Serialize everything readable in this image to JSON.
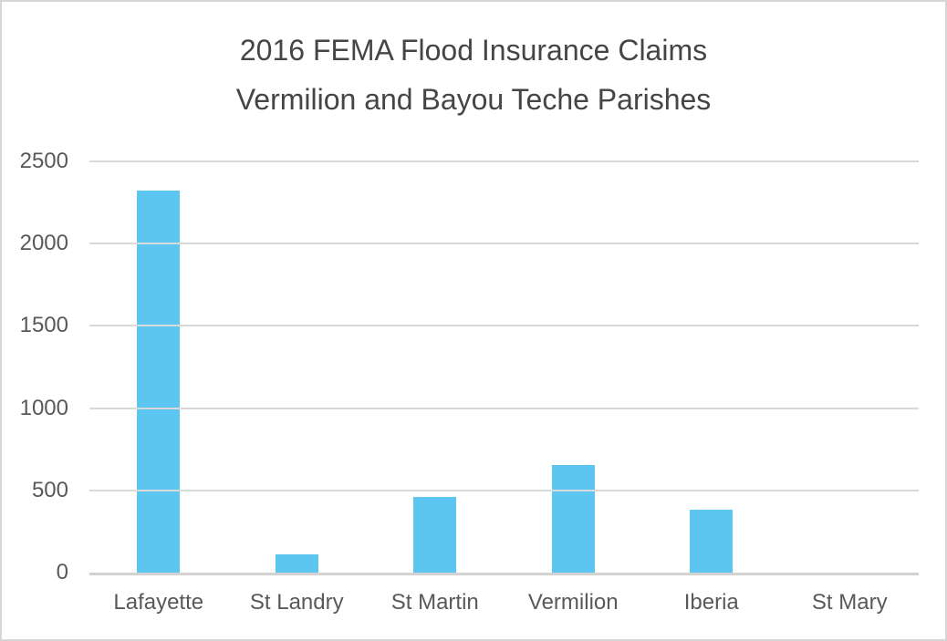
{
  "chart_data": {
    "type": "bar",
    "title": "2016 FEMA Flood Insurance Claims Vermilion and Bayou Teche Parishes",
    "title_line1": "2016 FEMA Flood Insurance Claims",
    "title_line2": "Vermilion and Bayou Teche Parishes",
    "categories": [
      "Lafayette",
      "St Landry",
      "St Martin",
      "Vermilion",
      "Iberia",
      "St Mary"
    ],
    "values": [
      2325,
      110,
      460,
      655,
      385,
      0
    ],
    "xlabel": "",
    "ylabel": "",
    "ylim": [
      0,
      2500
    ],
    "yticks": [
      0,
      500,
      1000,
      1500,
      2000,
      2500
    ],
    "grid": true,
    "legend_position": "none",
    "bar_color": "#5cc6f0"
  },
  "colors": {
    "bar": "#5cc6f0",
    "title_text": "#454545",
    "axis_text": "#595959",
    "gridline": "#d9d9d9",
    "axis_line": "#d2d2d2",
    "page_border": "#d6d6d6",
    "background": "#ffffff"
  }
}
